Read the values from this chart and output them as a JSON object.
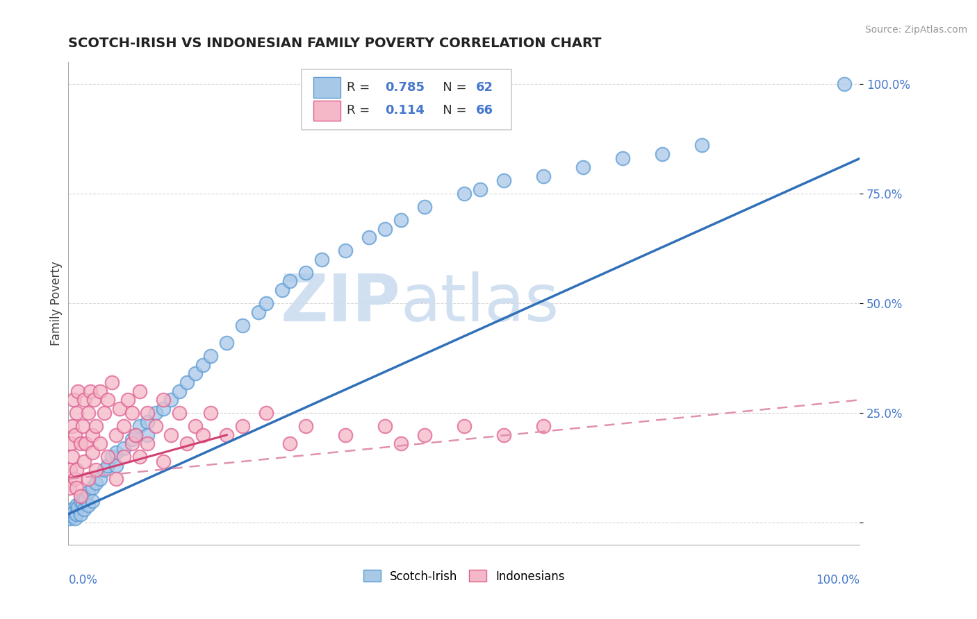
{
  "title": "SCOTCH-IRISH VS INDONESIAN FAMILY POVERTY CORRELATION CHART",
  "source": "Source: ZipAtlas.com",
  "ylabel": "Family Poverty",
  "blue_color": "#a8c8e8",
  "blue_edge_color": "#5b9bd5",
  "pink_color": "#f4b8c8",
  "pink_edge_color": "#e06090",
  "blue_line_color": "#3070b8",
  "pink_solid_color": "#d04070",
  "pink_dash_color": "#e090b0",
  "watermark_color": "#ccddf0",
  "axis_label_color": "#4477cc",
  "grid_color": "#cccccc",
  "title_color": "#222222",
  "background_color": "#ffffff",
  "stats_r1": "R = 0.785",
  "stats_n1": "N = 62",
  "stats_r2": "R =  0.114",
  "stats_n2": "N = 66",
  "xlim": [
    0,
    100
  ],
  "ylim": [
    -5,
    105
  ],
  "blue_regression": [
    0,
    2,
    100,
    83
  ],
  "pink_solid_regression": [
    0,
    10,
    20,
    20
  ],
  "pink_dash_regression": [
    0,
    10,
    100,
    28
  ]
}
